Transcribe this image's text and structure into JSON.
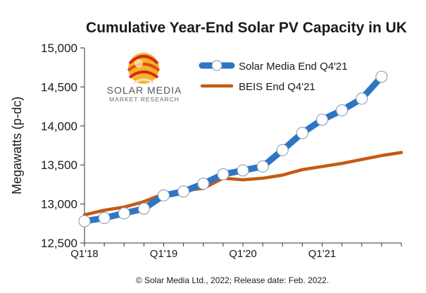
{
  "colors": {
    "solar_media_line": "#2e75c6",
    "beis_line": "#c55a11",
    "marker_fill": "#ffffff",
    "marker_stroke": "#7f97b2",
    "axis": "#333333"
  },
  "logo": {
    "name": "SOLAR MEDIA",
    "subtitle": "MARKET RESEARCH"
  },
  "footer": "© Solar Media Ltd., 2022; Release date: Feb. 2022.",
  "chart_data": {
    "type": "line",
    "title": "Cumulative Year-End Solar PV Capacity in UK",
    "xlabel": "",
    "ylabel": "Megawatts (p-dc)",
    "ylim": [
      12500,
      15000
    ],
    "xlim": [
      0,
      16
    ],
    "yticks": [
      12500,
      13000,
      13500,
      14000,
      14500,
      15000
    ],
    "ytick_labels": [
      "12,500",
      "13,000",
      "13,500",
      "14,000",
      "14,500",
      "15,000"
    ],
    "xticks": [
      0,
      4,
      8,
      12
    ],
    "xtick_labels": [
      "Q1'18",
      "Q1'19",
      "Q1'20",
      "Q1'21"
    ],
    "legend_position": "top-right",
    "series": [
      {
        "name": "Solar Media End Q4'21",
        "markers": true,
        "x": [
          0,
          1,
          2,
          3,
          4,
          5,
          6,
          7,
          8,
          9,
          10,
          11,
          12,
          13,
          14,
          15
        ],
        "values": [
          12780,
          12820,
          12880,
          12940,
          13110,
          13160,
          13260,
          13380,
          13430,
          13480,
          13690,
          13910,
          14080,
          14200,
          14350,
          14630
        ]
      },
      {
        "name": "BEIS End Q4'21",
        "markers": false,
        "x": [
          0,
          1,
          2,
          3,
          4,
          5,
          6,
          7,
          8,
          9,
          10,
          11,
          12,
          13,
          14,
          15,
          16
        ],
        "values": [
          12860,
          12920,
          12960,
          13030,
          13130,
          13170,
          13200,
          13330,
          13310,
          13330,
          13370,
          13440,
          13480,
          13520,
          13570,
          13620,
          13660
        ]
      }
    ]
  }
}
